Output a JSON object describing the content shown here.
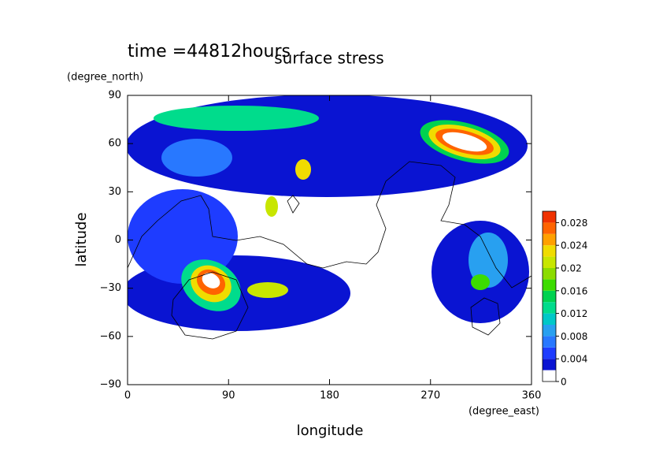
{
  "chart_data": {
    "type": "contour",
    "title": "surface stress",
    "subtitle": "time =44812hours",
    "x_label": "longitude",
    "y_label": "latitude",
    "x_unit": "(degree_east)",
    "y_unit": "(degree_north)",
    "xlim": [
      0,
      360
    ],
    "ylim": [
      -90,
      90
    ],
    "xticks": [
      0,
      90,
      180,
      270,
      360
    ],
    "yticks": [
      {
        "value": -90,
        "label": "−90"
      },
      {
        "value": -60,
        "label": "−60"
      },
      {
        "value": -30,
        "label": "−30"
      },
      0,
      30,
      60,
      90
    ],
    "colorbar": {
      "bounds": [
        0,
        0.002,
        0.004,
        0.006,
        0.008,
        0.01,
        0.012,
        0.014,
        0.016,
        0.018,
        0.02,
        0.022,
        0.024,
        0.026,
        0.028,
        0.03
      ],
      "colors": [
        "#ffffff",
        "#0a14d2",
        "#1e3cff",
        "#2878ff",
        "#28a0f0",
        "#00c8c8",
        "#00dc8c",
        "#00d250",
        "#3cdc00",
        "#8cdc00",
        "#c8e600",
        "#f0dc00",
        "#ffa000",
        "#ff6400",
        "#f03200"
      ],
      "ticks": [
        0,
        0.004,
        0.008,
        0.012,
        0.016,
        0.02,
        0.024,
        0.028
      ]
    }
  }
}
